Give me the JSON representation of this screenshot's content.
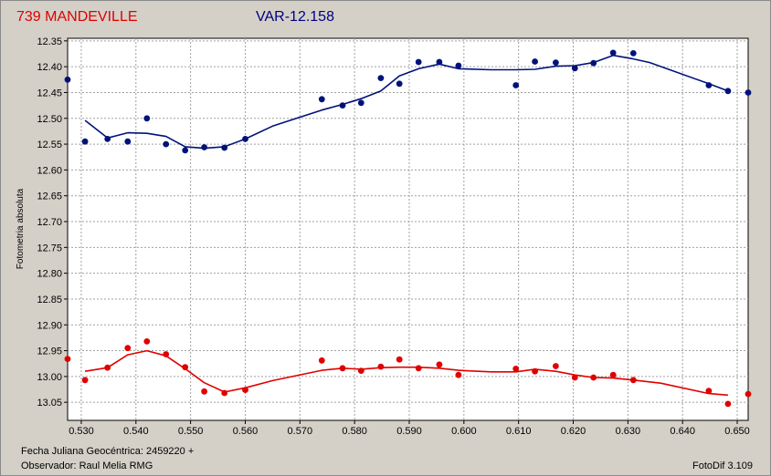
{
  "window": {
    "title_left": "739 MANDEVILLE",
    "title_right": "VAR-12.158",
    "footer_date": "Fecha Juliana Geocéntrica: 2459220 +",
    "footer_observer": "Observador: Raul Melia RMG",
    "footer_version": "FotoDif 3.109"
  },
  "colors": {
    "series_var": "#00127a",
    "series_ref": "#e00000",
    "title_left": "#e00000",
    "title_right": "#000080",
    "plot_bg": "#ffffff",
    "grid": "#a0a0a0"
  },
  "chart_data": {
    "type": "scatter",
    "ylabel": "Fotometria absoluta",
    "xlim": [
      0.5275,
      0.652
    ],
    "ylim": [
      12.345,
      13.085
    ],
    "y_inverted": true,
    "grid": true,
    "xticks": [
      "0.530",
      "0.540",
      "0.550",
      "0.560",
      "0.570",
      "0.580",
      "0.590",
      "0.600",
      "0.610",
      "0.620",
      "0.630",
      "0.640",
      "0.650"
    ],
    "yticks": [
      "12.35",
      "12.40",
      "12.45",
      "12.50",
      "12.55",
      "12.60",
      "12.65",
      "12.70",
      "12.75",
      "12.80",
      "12.85",
      "12.90",
      "12.95",
      "13.00",
      "13.05"
    ],
    "series": [
      {
        "color": "#00127a",
        "points": [
          [
            0.5275,
            12.425
          ],
          [
            0.5307,
            12.545
          ],
          [
            0.5348,
            12.54
          ],
          [
            0.5385,
            12.545
          ],
          [
            0.542,
            12.5
          ],
          [
            0.5455,
            12.55
          ],
          [
            0.549,
            12.562
          ],
          [
            0.5525,
            12.556
          ],
          [
            0.5562,
            12.557
          ],
          [
            0.56,
            12.54
          ],
          [
            0.574,
            12.463
          ],
          [
            0.5778,
            12.475
          ],
          [
            0.5812,
            12.47
          ],
          [
            0.5848,
            12.422
          ],
          [
            0.5882,
            12.433
          ],
          [
            0.5917,
            12.391
          ],
          [
            0.5955,
            12.391
          ],
          [
            0.599,
            12.398
          ],
          [
            0.6095,
            12.436
          ],
          [
            0.613,
            12.39
          ],
          [
            0.6168,
            12.392
          ],
          [
            0.6203,
            12.403
          ],
          [
            0.6237,
            12.393
          ],
          [
            0.6273,
            12.373
          ],
          [
            0.631,
            12.374
          ],
          [
            0.6448,
            12.436
          ],
          [
            0.6483,
            12.447
          ],
          [
            0.652,
            12.45
          ]
        ],
        "trend": [
          [
            0.5307,
            12.504
          ],
          [
            0.5348,
            12.538
          ],
          [
            0.5385,
            12.528
          ],
          [
            0.542,
            12.529
          ],
          [
            0.5455,
            12.535
          ],
          [
            0.549,
            12.555
          ],
          [
            0.5525,
            12.558
          ],
          [
            0.5562,
            12.555
          ],
          [
            0.56,
            12.54
          ],
          [
            0.565,
            12.515
          ],
          [
            0.574,
            12.484
          ],
          [
            0.5778,
            12.473
          ],
          [
            0.5812,
            12.462
          ],
          [
            0.5848,
            12.447
          ],
          [
            0.5882,
            12.418
          ],
          [
            0.5917,
            12.404
          ],
          [
            0.5955,
            12.395
          ],
          [
            0.599,
            12.404
          ],
          [
            0.605,
            12.406
          ],
          [
            0.6095,
            12.406
          ],
          [
            0.613,
            12.405
          ],
          [
            0.6168,
            12.399
          ],
          [
            0.6203,
            12.398
          ],
          [
            0.6237,
            12.392
          ],
          [
            0.6273,
            12.378
          ],
          [
            0.631,
            12.385
          ],
          [
            0.634,
            12.392
          ],
          [
            0.6448,
            12.433
          ],
          [
            0.6483,
            12.447
          ]
        ]
      },
      {
        "color": "#e00000",
        "points": [
          [
            0.5275,
            12.966
          ],
          [
            0.5307,
            13.007
          ],
          [
            0.5348,
            12.983
          ],
          [
            0.5385,
            12.945
          ],
          [
            0.542,
            12.932
          ],
          [
            0.5455,
            12.957
          ],
          [
            0.549,
            12.982
          ],
          [
            0.5525,
            13.029
          ],
          [
            0.5562,
            13.032
          ],
          [
            0.56,
            13.026
          ],
          [
            0.574,
            12.969
          ],
          [
            0.5778,
            12.984
          ],
          [
            0.5812,
            12.989
          ],
          [
            0.5848,
            12.981
          ],
          [
            0.5882,
            12.967
          ],
          [
            0.5917,
            12.984
          ],
          [
            0.5955,
            12.977
          ],
          [
            0.599,
            12.997
          ],
          [
            0.6095,
            12.985
          ],
          [
            0.613,
            12.99
          ],
          [
            0.6168,
            12.98
          ],
          [
            0.6203,
            13.002
          ],
          [
            0.6237,
            13.002
          ],
          [
            0.6273,
            12.997
          ],
          [
            0.631,
            13.007
          ],
          [
            0.6448,
            13.028
          ],
          [
            0.6483,
            13.053
          ],
          [
            0.652,
            13.034
          ]
        ],
        "trend": [
          [
            0.5307,
            12.99
          ],
          [
            0.5348,
            12.983
          ],
          [
            0.5385,
            12.958
          ],
          [
            0.542,
            12.95
          ],
          [
            0.5455,
            12.96
          ],
          [
            0.549,
            12.985
          ],
          [
            0.5525,
            13.012
          ],
          [
            0.5562,
            13.03
          ],
          [
            0.56,
            13.022
          ],
          [
            0.565,
            13.008
          ],
          [
            0.574,
            12.988
          ],
          [
            0.5778,
            12.984
          ],
          [
            0.5812,
            12.986
          ],
          [
            0.5848,
            12.983
          ],
          [
            0.5882,
            12.982
          ],
          [
            0.5917,
            12.982
          ],
          [
            0.5955,
            12.984
          ],
          [
            0.599,
            12.988
          ],
          [
            0.605,
            12.991
          ],
          [
            0.6095,
            12.991
          ],
          [
            0.613,
            12.986
          ],
          [
            0.6168,
            12.99
          ],
          [
            0.6203,
            12.997
          ],
          [
            0.6237,
            13.002
          ],
          [
            0.6273,
            13.003
          ],
          [
            0.631,
            13.007
          ],
          [
            0.636,
            13.013
          ],
          [
            0.6448,
            13.033
          ],
          [
            0.6483,
            13.036
          ]
        ]
      }
    ]
  }
}
